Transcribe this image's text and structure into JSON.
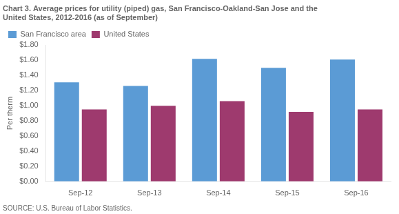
{
  "chart_data": {
    "type": "bar",
    "title": [
      "Chart 3. Average prices for utility (piped) gas, San Francisco-Oakland-San Jose and the",
      "United States, 2012-2016 (as of September)"
    ],
    "ylabel": "Per therm",
    "source": "SOURCE: U.S. Bureau of Labor Statistics.",
    "categories": [
      "Sep-12",
      "Sep-13",
      "Sep-14",
      "Sep-15",
      "Sep-16"
    ],
    "series": [
      {
        "name": "San Francisco area",
        "color": "#5B9BD5",
        "values": [
          1.31,
          1.26,
          1.62,
          1.5,
          1.61
        ]
      },
      {
        "name": "United States",
        "color": "#9E3A6E",
        "values": [
          0.95,
          1.0,
          1.06,
          0.92,
          0.95
        ]
      }
    ],
    "ylim": [
      0.0,
      1.8
    ],
    "yticks": [
      {
        "value": 0.0,
        "label": "$0.00"
      },
      {
        "value": 0.2,
        "label": "$0.20"
      },
      {
        "value": 0.4,
        "label": "$0.40"
      },
      {
        "value": 0.6,
        "label": "$0.60"
      },
      {
        "value": 0.8,
        "label": "$0.80"
      },
      {
        "value": 1.0,
        "label": "$1.00"
      },
      {
        "value": 1.2,
        "label": "$1.20"
      },
      {
        "value": 1.4,
        "label": "$1.40"
      },
      {
        "value": 1.6,
        "label": "$1.60"
      },
      {
        "value": 1.8,
        "label": "$1.80"
      }
    ],
    "grid": false,
    "legend": "upper left"
  }
}
